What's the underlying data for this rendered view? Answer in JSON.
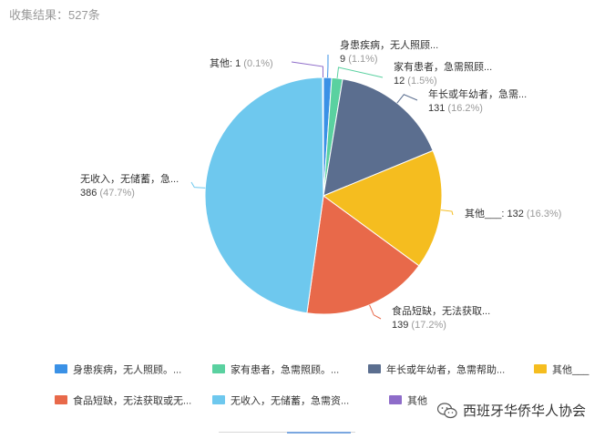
{
  "header": {
    "text": "收集结果：527条"
  },
  "watermark": {
    "text": "西班牙华侨华人协会",
    "icon": "wechat-icon"
  },
  "chart_data": {
    "type": "pie",
    "total": 527,
    "slices": [
      {
        "label": "身患疾病，无人照顾...",
        "legend": "身患疾病，无人照顾。...",
        "value": 9,
        "percent": "1.1%",
        "color": "#3a91e6"
      },
      {
        "label": "家有患者，急需照顾...",
        "legend": "家有患者，急需照顾。...",
        "value": 12,
        "percent": "1.5%",
        "color": "#5ad1a0"
      },
      {
        "label": "年长或年幼者，急需...",
        "legend": "年长或年幼者，急需帮助...",
        "value": 131,
        "percent": "16.2%",
        "color": "#5b6e8f"
      },
      {
        "label": "其他___",
        "legend": "其他___",
        "value": 132,
        "percent": "16.3%",
        "color": "#f5bd1f"
      },
      {
        "label": "食品短缺，无法获取...",
        "legend": "食品短缺，无法获取或无...",
        "value": 139,
        "percent": "17.2%",
        "color": "#e8694a"
      },
      {
        "label": "无收入，无储蓄，急...",
        "legend": "无收入，无储蓄，急需资...",
        "value": 386,
        "percent": "47.7%",
        "color": "#6ec8ee"
      },
      {
        "label": "其他",
        "legend": "其他",
        "value": 1,
        "percent": "0.1%",
        "color": "#8e6cc9"
      }
    ]
  }
}
